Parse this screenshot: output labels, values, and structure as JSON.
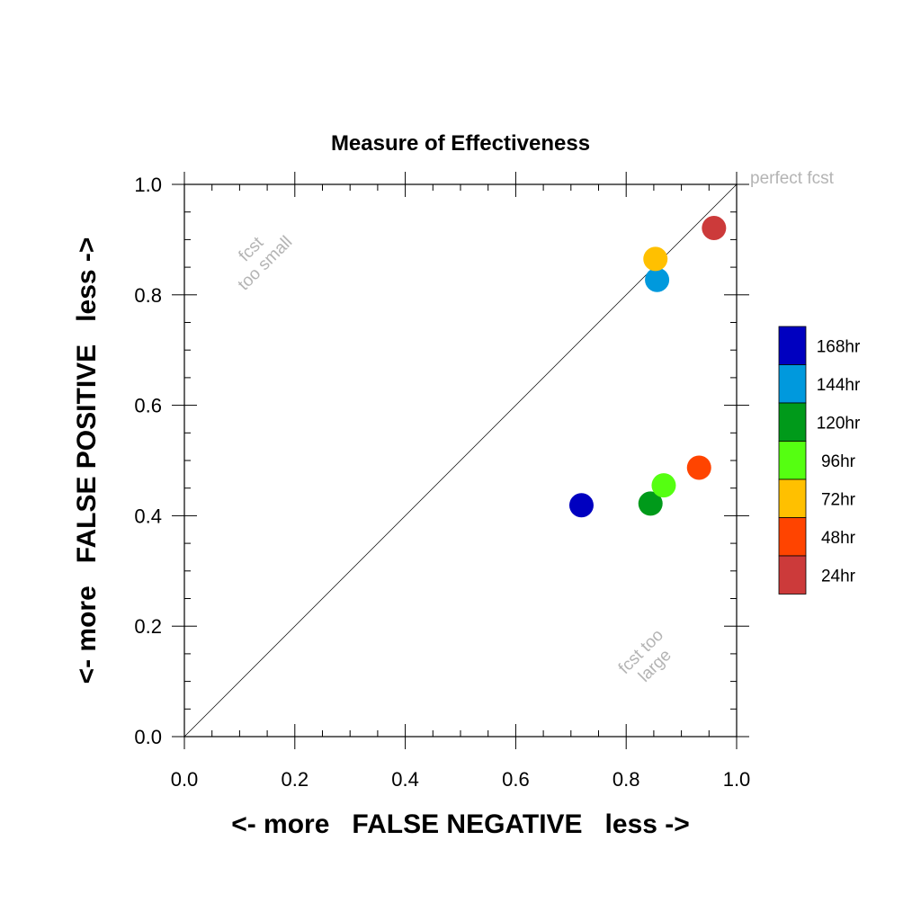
{
  "chart_data": {
    "type": "scatter",
    "title": "Measure of Effectiveness",
    "xlabel": "<- more   FALSE NEGATIVE   less ->",
    "ylabel": "<- more   FALSE POSITIVE   less ->",
    "xlim": [
      0,
      1
    ],
    "ylim": [
      0,
      1
    ],
    "xticks": [
      "0.0",
      "0.2",
      "0.4",
      "0.6",
      "0.8",
      "1.0"
    ],
    "yticks": [
      "0.0",
      "0.2",
      "0.4",
      "0.6",
      "0.8",
      "1.0"
    ],
    "tick_values": [
      0,
      0.2,
      0.4,
      0.6,
      0.8,
      1.0
    ],
    "grid": false,
    "legend_position": "right",
    "diagonal_line": true,
    "annotations": {
      "perfect": "perfect fcst",
      "small_line1": "fcst",
      "small_line2": "too small",
      "large_line1": "fcst too",
      "large_line2": "large"
    },
    "series": [
      {
        "name": "168hr",
        "color": "#0000c0",
        "x": 0.719,
        "y": 0.419
      },
      {
        "name": "144hr",
        "color": "#0099dd",
        "x": 0.856,
        "y": 0.827
      },
      {
        "name": "120hr",
        "color": "#009a1a",
        "x": 0.844,
        "y": 0.422
      },
      {
        "name": "96hr",
        "color": "#55ff11",
        "x": 0.868,
        "y": 0.455
      },
      {
        "name": "72hr",
        "color": "#ffc000",
        "x": 0.853,
        "y": 0.865
      },
      {
        "name": "48hr",
        "color": "#ff4400",
        "x": 0.932,
        "y": 0.487
      },
      {
        "name": "24hr",
        "color": "#cc3a3a",
        "x": 0.959,
        "y": 0.921
      }
    ]
  }
}
